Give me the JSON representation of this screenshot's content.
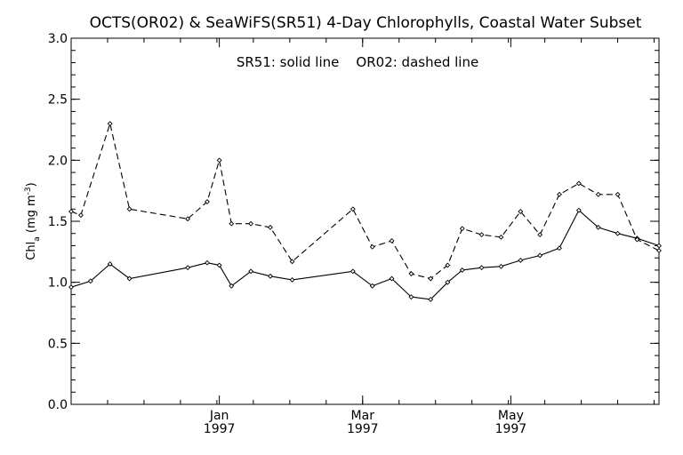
{
  "chart_data": {
    "type": "line",
    "title": "OCTS(OR02) & SeaWiFS(SR51) 4-Day Chlorophylls, Coastal Water Subset",
    "annotation": "SR51: solid line    OR02: dashed line",
    "ylabel": {
      "main": "Chl",
      "sub": "a",
      "unit_pre": " (mg m",
      "sup": "-3",
      "unit_post": ")"
    },
    "ylim": [
      0.0,
      3.0
    ],
    "yticks": [
      "0.0",
      "0.5",
      "1.0",
      "1.5",
      "2.0",
      "2.5",
      "3.0"
    ],
    "xlim": [
      "1996-11-01",
      "1997-07-01"
    ],
    "xticks": [
      {
        "date": "1997-01-01",
        "month": "Jan",
        "year": "1997"
      },
      {
        "date": "1997-03-01",
        "month": "Mar",
        "year": "1997"
      },
      {
        "date": "1997-05-01",
        "month": "May",
        "year": "1997"
      }
    ],
    "grid": false,
    "series": [
      {
        "name": "SR51",
        "style": "solid",
        "points": [
          [
            "1996-11-01",
            0.96
          ],
          [
            "1996-11-09",
            1.01
          ],
          [
            "1996-11-17",
            1.15
          ],
          [
            "1996-11-25",
            1.03
          ],
          [
            "1996-12-19",
            1.12
          ],
          [
            "1996-12-27",
            1.16
          ],
          [
            "1997-01-01",
            1.14
          ],
          [
            "1997-01-06",
            0.97
          ],
          [
            "1997-01-14",
            1.09
          ],
          [
            "1997-01-22",
            1.05
          ],
          [
            "1997-01-31",
            1.02
          ],
          [
            "1997-02-25",
            1.09
          ],
          [
            "1997-03-05",
            0.97
          ],
          [
            "1997-03-13",
            1.03
          ],
          [
            "1997-03-21",
            0.88
          ],
          [
            "1997-03-29",
            0.86
          ],
          [
            "1997-04-05",
            1.0
          ],
          [
            "1997-04-11",
            1.1
          ],
          [
            "1997-04-19",
            1.12
          ],
          [
            "1997-04-27",
            1.13
          ],
          [
            "1997-05-05",
            1.18
          ],
          [
            "1997-05-13",
            1.22
          ],
          [
            "1997-05-21",
            1.28
          ],
          [
            "1997-05-29",
            1.59
          ],
          [
            "1997-06-06",
            1.45
          ],
          [
            "1997-06-14",
            1.4
          ],
          [
            "1997-06-22",
            1.36
          ],
          [
            "1997-07-01",
            1.3
          ]
        ]
      },
      {
        "name": "OR02",
        "style": "dashed",
        "points": [
          [
            "1996-11-01",
            1.58
          ],
          [
            "1996-11-05",
            1.55
          ],
          [
            "1996-11-17",
            2.3
          ],
          [
            "1996-11-25",
            1.6
          ],
          [
            "1996-12-19",
            1.52
          ],
          [
            "1996-12-27",
            1.66
          ],
          [
            "1997-01-01",
            2.0
          ],
          [
            "1997-01-06",
            1.48
          ],
          [
            "1997-01-14",
            1.48
          ],
          [
            "1997-01-22",
            1.45
          ],
          [
            "1997-01-31",
            1.17
          ],
          [
            "1997-02-25",
            1.6
          ],
          [
            "1997-03-05",
            1.29
          ],
          [
            "1997-03-13",
            1.34
          ],
          [
            "1997-03-21",
            1.07
          ],
          [
            "1997-03-29",
            1.03
          ],
          [
            "1997-04-05",
            1.14
          ],
          [
            "1997-04-11",
            1.44
          ],
          [
            "1997-04-19",
            1.39
          ],
          [
            "1997-04-27",
            1.37
          ],
          [
            "1997-05-05",
            1.58
          ],
          [
            "1997-05-13",
            1.39
          ],
          [
            "1997-05-21",
            1.72
          ],
          [
            "1997-05-29",
            1.81
          ],
          [
            "1997-06-06",
            1.72
          ],
          [
            "1997-06-14",
            1.72
          ],
          [
            "1997-06-22",
            1.35
          ],
          [
            "1997-07-01",
            1.26
          ]
        ]
      }
    ]
  }
}
